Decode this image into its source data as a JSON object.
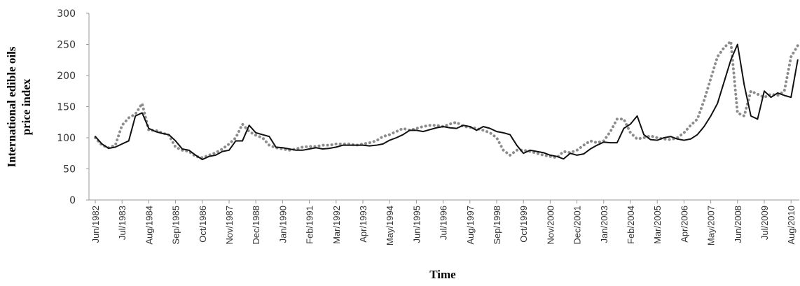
{
  "chart_data": {
    "type": "line",
    "ylabel": [
      "International edible oils",
      "price index"
    ],
    "xlabel": "Time",
    "categories": [
      "Jun/1982",
      null,
      null,
      null,
      "Jul/1983",
      null,
      null,
      null,
      "Aug/1984",
      null,
      null,
      null,
      "Sep/1985",
      null,
      null,
      null,
      "Oct/1986",
      null,
      null,
      null,
      "Nov/1987",
      null,
      null,
      null,
      "Dec/1988",
      null,
      null,
      null,
      "Jan/1990",
      null,
      null,
      null,
      "Feb/1991",
      null,
      null,
      null,
      "Mar/1992",
      null,
      null,
      null,
      "Apr/1993",
      null,
      null,
      null,
      "May/1994",
      null,
      null,
      null,
      "Jun/1995",
      null,
      null,
      null,
      "Jul/1996",
      null,
      null,
      null,
      "Aug/1997",
      null,
      null,
      null,
      "Sep/1998",
      null,
      null,
      null,
      "Oct/1999",
      null,
      null,
      null,
      "Nov/2000",
      null,
      null,
      null,
      "Dec/2001",
      null,
      null,
      null,
      "Jan/2003",
      null,
      null,
      null,
      "Feb/2004",
      null,
      null,
      null,
      "Mar/2005",
      null,
      null,
      null,
      "Apr/2006",
      null,
      null,
      null,
      "May/2007",
      null,
      null,
      null,
      "Jun/2008",
      null,
      null,
      null,
      "Jul/2009",
      null,
      null,
      null,
      "Aug/2010",
      null
    ],
    "series": [
      {
        "color": "#111111",
        "dashed": false,
        "values": [
          102,
          90,
          83,
          85,
          90,
          95,
          135,
          140,
          115,
          110,
          107,
          105,
          95,
          82,
          80,
          72,
          65,
          70,
          72,
          78,
          80,
          95,
          95,
          120,
          108,
          105,
          102,
          85,
          84,
          82,
          80,
          80,
          82,
          84,
          82,
          83,
          85,
          88,
          88,
          88,
          88,
          87,
          88,
          90,
          96,
          100,
          105,
          112,
          112,
          110,
          113,
          116,
          118,
          116,
          115,
          120,
          118,
          112,
          118,
          115,
          110,
          108,
          105,
          88,
          75,
          80,
          78,
          76,
          72,
          70,
          66,
          75,
          72,
          74,
          82,
          88,
          93,
          92,
          92,
          115,
          122,
          135,
          105,
          97,
          96,
          100,
          102,
          98,
          96,
          98,
          105,
          118,
          135,
          155,
          190,
          225,
          250,
          185,
          135,
          130,
          175,
          165,
          172,
          168,
          165,
          225
        ]
      },
      {
        "color": "#8c8c8c",
        "dashed": true,
        "values": [
          100,
          88,
          84,
          88,
          120,
          132,
          138,
          155,
          112,
          112,
          108,
          104,
          85,
          80,
          78,
          70,
          68,
          72,
          76,
          82,
          90,
          100,
          122,
          110,
          104,
          100,
          88,
          84,
          82,
          80,
          82,
          85,
          86,
          86,
          88,
          88,
          90,
          90,
          90,
          88,
          90,
          92,
          95,
          102,
          105,
          110,
          115,
          112,
          115,
          118,
          120,
          120,
          118,
          122,
          125,
          118,
          117,
          115,
          112,
          108,
          100,
          80,
          72,
          80,
          80,
          78,
          75,
          72,
          70,
          68,
          78,
          76,
          80,
          88,
          95,
          92,
          95,
          110,
          130,
          130,
          108,
          98,
          100,
          103,
          100,
          98,
          97,
          100,
          108,
          120,
          130,
          160,
          195,
          230,
          245,
          255,
          140,
          135,
          175,
          170,
          165,
          170,
          168,
          175,
          230,
          248
        ]
      }
    ],
    "ylim": [
      0,
      300
    ],
    "yticks": [
      0,
      50,
      100,
      150,
      200,
      250,
      300
    ]
  }
}
